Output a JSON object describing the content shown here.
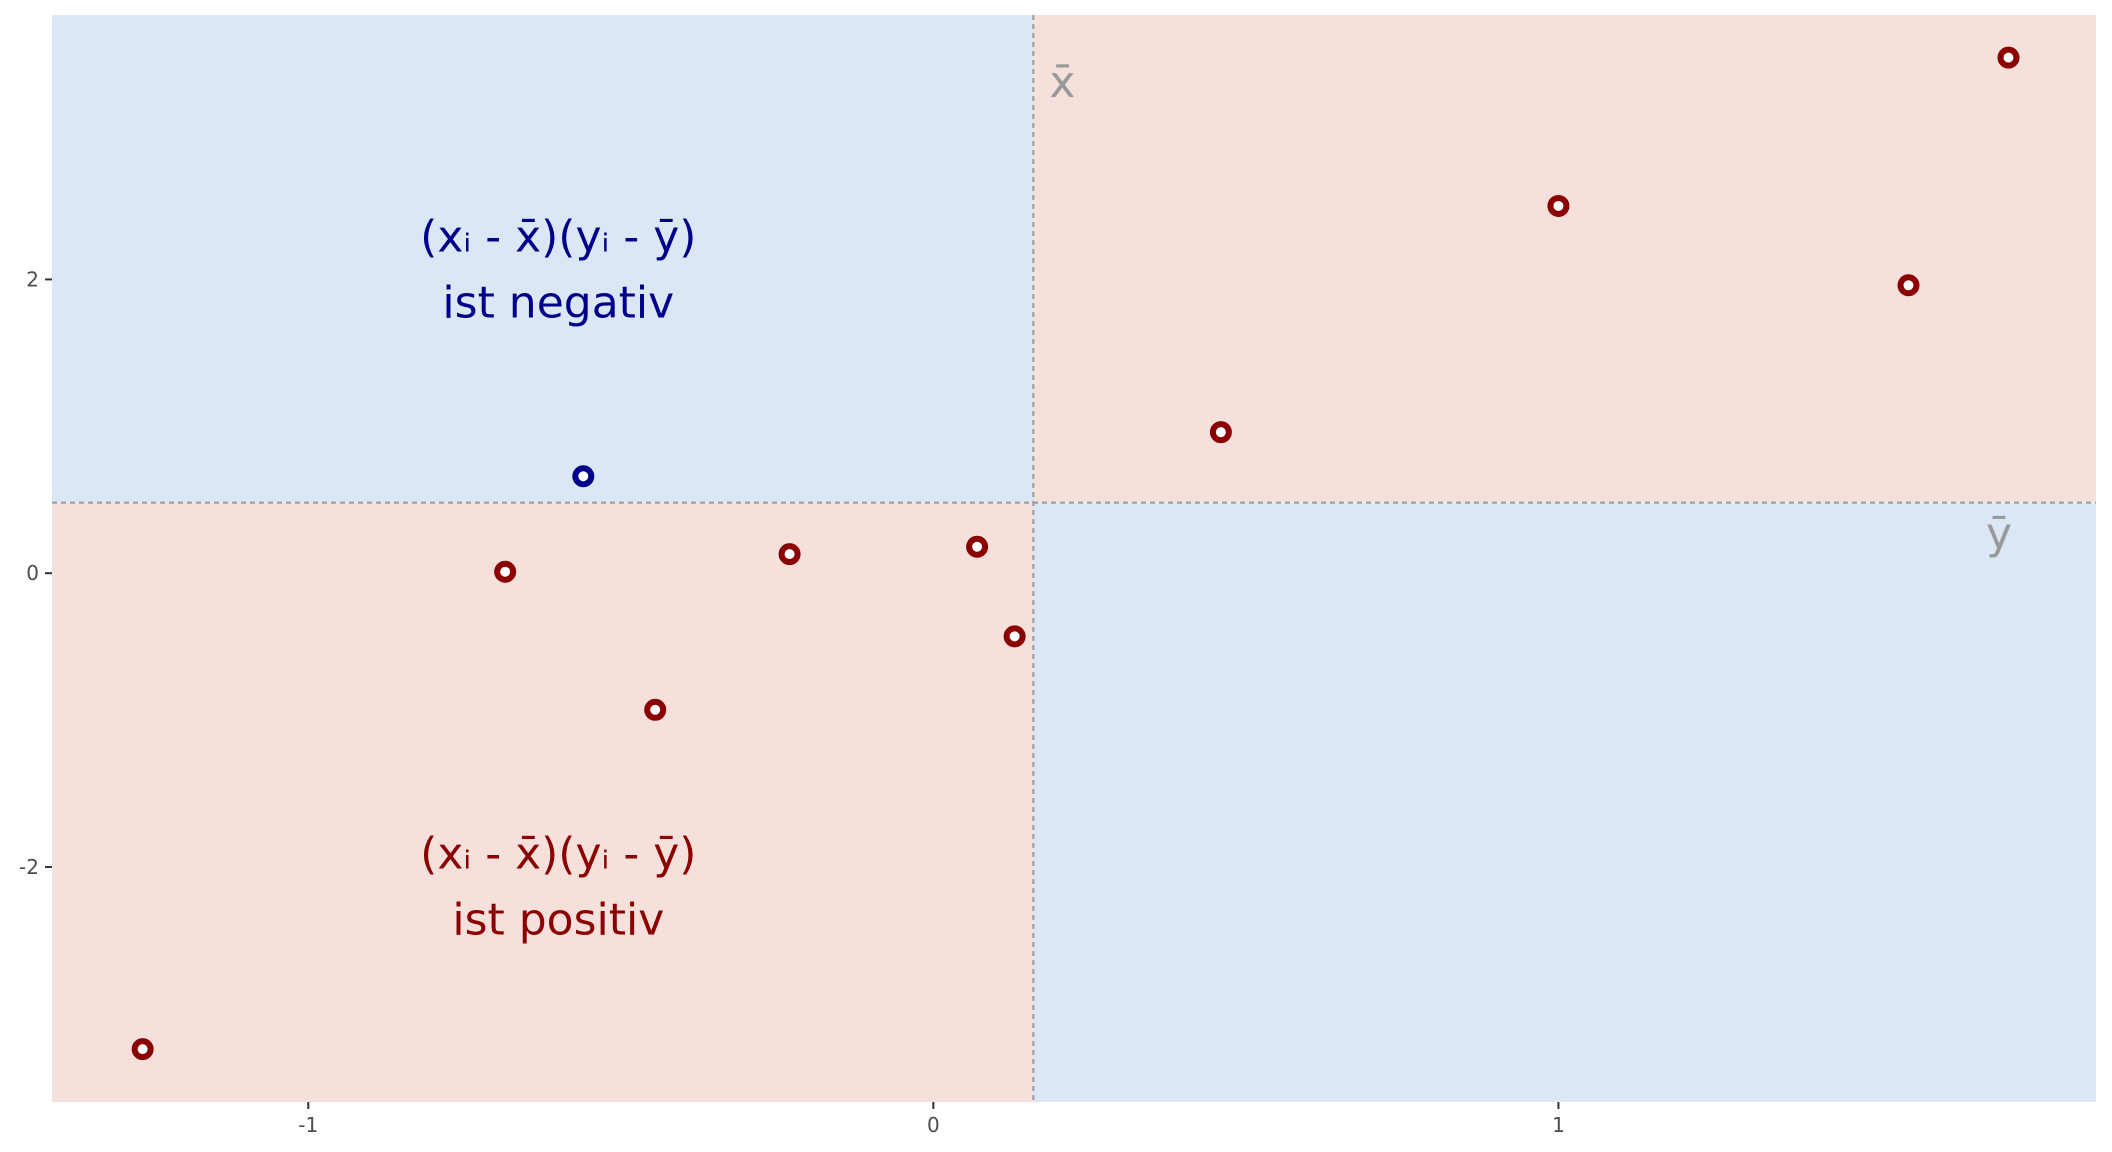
{
  "chart_data": {
    "type": "scatter",
    "title": "",
    "xlabel": "",
    "ylabel": "",
    "xlim": [
      -1.41,
      1.86
    ],
    "ylim": [
      -3.6,
      3.8
    ],
    "x_ticks": [
      -1,
      0,
      1
    ],
    "x_tick_labels": [
      "-1",
      "0",
      "1"
    ],
    "y_ticks": [
      -2,
      0,
      2
    ],
    "y_tick_labels": [
      "-2",
      "0",
      "2"
    ],
    "grid": false,
    "mean_x": 0.16,
    "mean_y": 0.48,
    "mean_x_label": "x̄",
    "mean_y_label": "ȳ",
    "points": [
      {
        "x": -1.265,
        "y": -3.24,
        "sign": "positive"
      },
      {
        "x": -0.685,
        "y": 0.01,
        "sign": "positive"
      },
      {
        "x": -0.56,
        "y": 0.66,
        "sign": "negative"
      },
      {
        "x": -0.445,
        "y": -0.93,
        "sign": "positive"
      },
      {
        "x": -0.23,
        "y": 0.13,
        "sign": "positive"
      },
      {
        "x": 0.07,
        "y": 0.18,
        "sign": "positive"
      },
      {
        "x": 0.13,
        "y": -0.43,
        "sign": "positive"
      },
      {
        "x": 0.46,
        "y": 0.96,
        "sign": "positive"
      },
      {
        "x": 1.0,
        "y": 2.5,
        "sign": "positive"
      },
      {
        "x": 1.56,
        "y": 1.96,
        "sign": "positive"
      },
      {
        "x": 1.72,
        "y": 3.51,
        "sign": "positive"
      }
    ],
    "annotations": {
      "negative": {
        "line1": "(xᵢ - x̄)(yᵢ - ȳ)",
        "line2": "ist negativ",
        "x": -0.6,
        "y": 2.08
      },
      "positive": {
        "line1": "(xᵢ - x̄)(yᵢ - ȳ)",
        "line2": "ist positiv",
        "x": -0.6,
        "y": -2.12
      }
    },
    "colors": {
      "positive": "#8b0000",
      "negative": "#00008b",
      "positive_region": "#f5e0dc",
      "negative_region": "#dce7f5",
      "mean_line": "#999999",
      "tick_text": "#4d4d4d"
    }
  }
}
